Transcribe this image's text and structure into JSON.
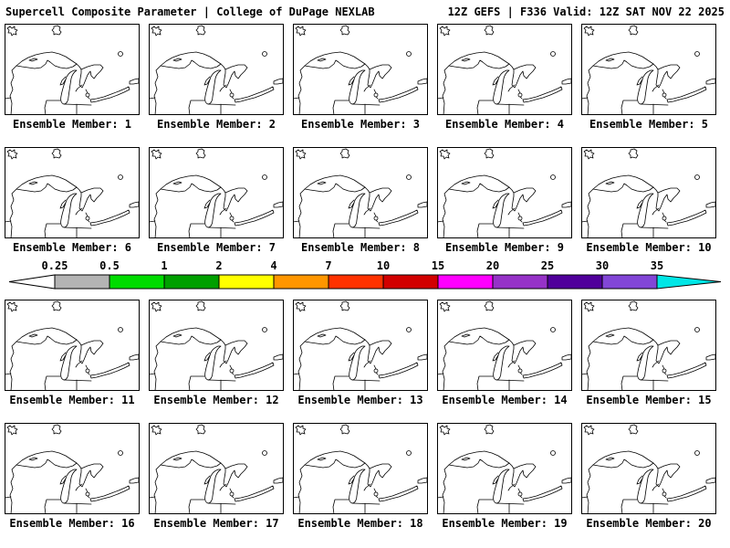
{
  "header": {
    "left": "Supercell Composite Parameter | College of DuPage NEXLAB",
    "right": "12Z GEFS | F336 Valid: 12Z SAT NOV 22 2025"
  },
  "map": {
    "region": "Great Lakes"
  },
  "panels": [
    {
      "label": "Ensemble Member: 1"
    },
    {
      "label": "Ensemble Member: 2"
    },
    {
      "label": "Ensemble Member: 3"
    },
    {
      "label": "Ensemble Member: 4"
    },
    {
      "label": "Ensemble Member: 5"
    },
    {
      "label": "Ensemble Member: 6"
    },
    {
      "label": "Ensemble Member: 7"
    },
    {
      "label": "Ensemble Member: 8"
    },
    {
      "label": "Ensemble Member: 9"
    },
    {
      "label": "Ensemble Member: 10"
    },
    {
      "label": "Ensemble Member: 11"
    },
    {
      "label": "Ensemble Member: 12"
    },
    {
      "label": "Ensemble Member: 13"
    },
    {
      "label": "Ensemble Member: 14"
    },
    {
      "label": "Ensemble Member: 15"
    },
    {
      "label": "Ensemble Member: 16"
    },
    {
      "label": "Ensemble Member: 17"
    },
    {
      "label": "Ensemble Member: 18"
    },
    {
      "label": "Ensemble Member: 19"
    },
    {
      "label": "Ensemble Member: 20"
    }
  ],
  "colorbar": {
    "ticks": [
      "0.25",
      "0.5",
      "1",
      "2",
      "4",
      "7",
      "10",
      "15",
      "20",
      "25",
      "30",
      "35"
    ],
    "segments": [
      {
        "range": "<0.25",
        "color": "#ffffff"
      },
      {
        "range": "0.25-0.5",
        "color": "#b4b4b4"
      },
      {
        "range": "0.5-1",
        "color": "#00dc00"
      },
      {
        "range": "1-2",
        "color": "#00a000"
      },
      {
        "range": "2-4",
        "color": "#ffff00"
      },
      {
        "range": "4-7",
        "color": "#ff9600"
      },
      {
        "range": "7-10",
        "color": "#ff3200"
      },
      {
        "range": "10-15",
        "color": "#d20000"
      },
      {
        "range": "15-20",
        "color": "#ff00ff"
      },
      {
        "range": "20-25",
        "color": "#9632c8"
      },
      {
        "range": "25-30",
        "color": "#50009b"
      },
      {
        "range": "30-35",
        "color": "#8246d7"
      },
      {
        "range": ">35",
        "color": "#00e6e6"
      }
    ],
    "outline_color": "#000000"
  }
}
